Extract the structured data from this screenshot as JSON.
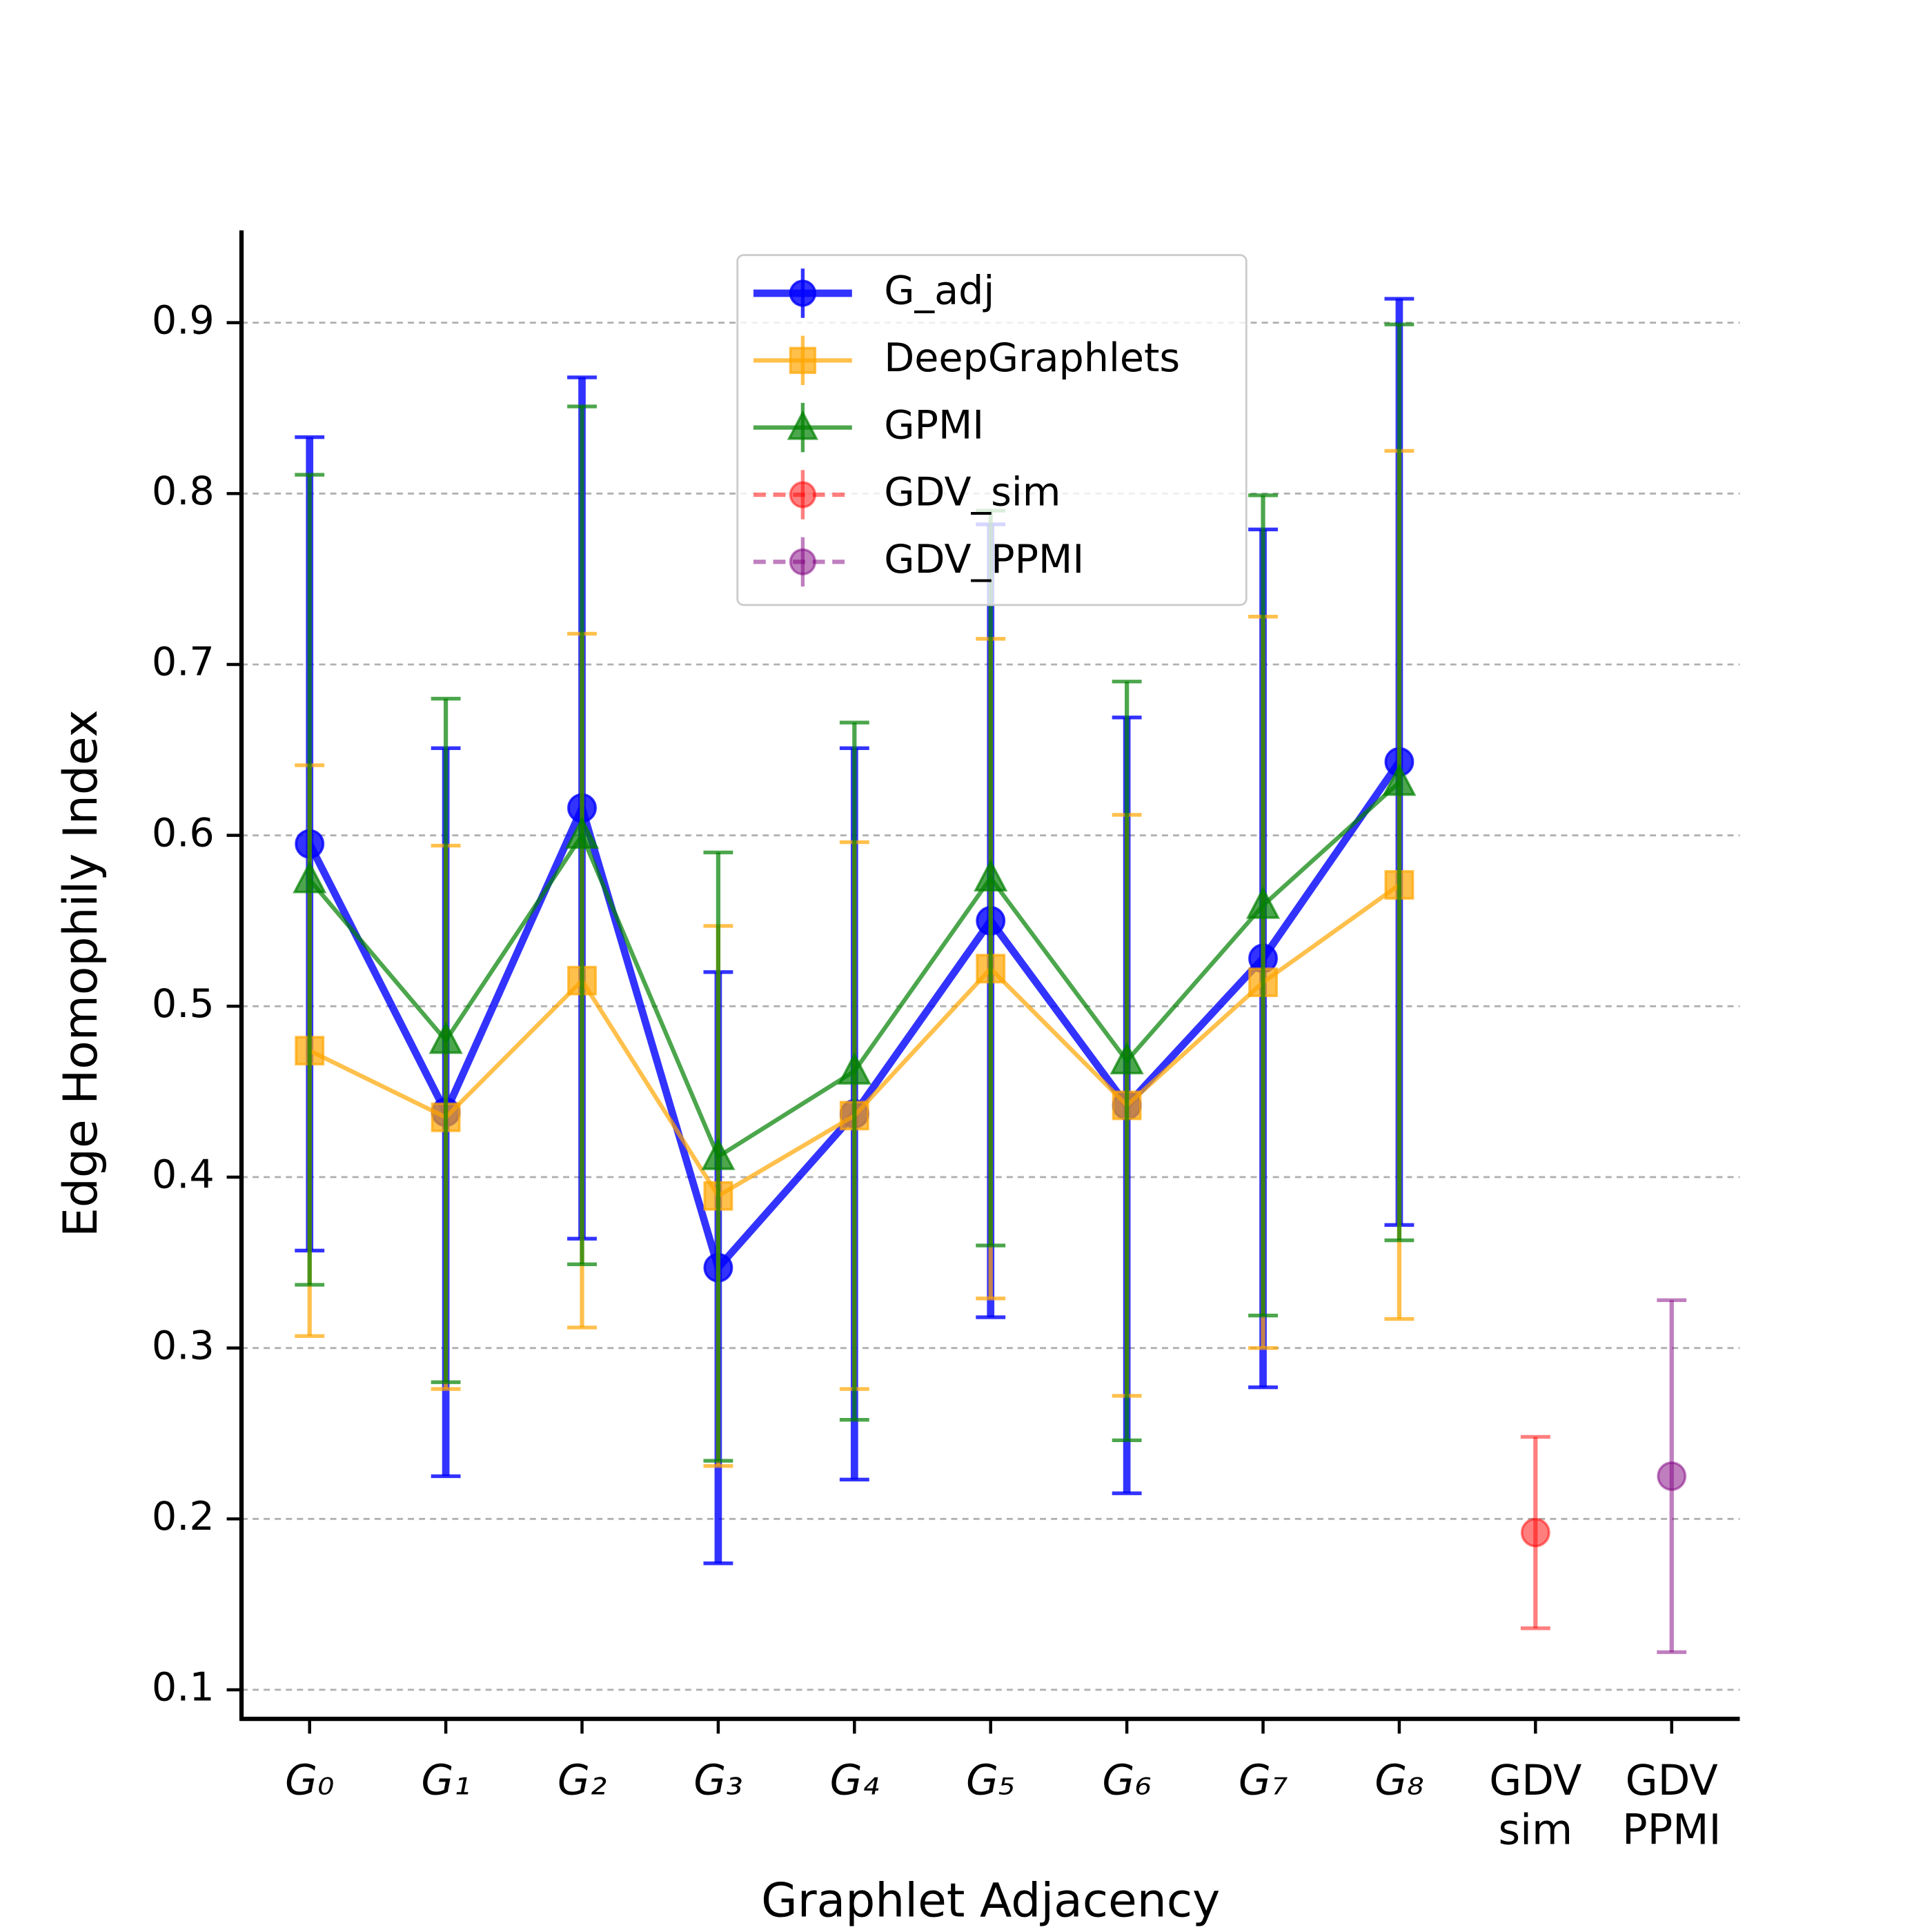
{
  "chart_data": {
    "type": "errorbar",
    "xlabel": "Graphlet Adjacency",
    "ylabel": "Edge Homophily Index",
    "categories": [
      "G₀",
      "G₁",
      "G₂",
      "G₃",
      "G₄",
      "G₅",
      "G₆",
      "G₇",
      "G₈",
      "GDV sim",
      "GDV PPMI"
    ],
    "ylim": [
      0.083,
      0.954
    ],
    "yticks": [
      0.1,
      0.2,
      0.3,
      0.4,
      0.5,
      0.6,
      0.7,
      0.8,
      0.9
    ],
    "grid": true,
    "legend": "upper center",
    "series": [
      {
        "name": "G_adj",
        "color": "#0000ff",
        "marker": "circle",
        "linestyle": "solid",
        "values": [
          0.595,
          0.438,
          0.616,
          0.347,
          0.437,
          0.55,
          0.442,
          0.528,
          0.643,
          null,
          null
        ],
        "errors": [
          0.238,
          0.213,
          0.252,
          0.173,
          0.214,
          0.232,
          0.227,
          0.251,
          0.271,
          null,
          null
        ]
      },
      {
        "name": "DeepGraphlets",
        "color": "#ffa500",
        "marker": "square",
        "linestyle": "solid",
        "values": [
          0.474,
          0.435,
          0.515,
          0.389,
          0.436,
          0.522,
          0.442,
          0.514,
          0.571,
          null,
          null
        ],
        "errors": [
          0.167,
          0.159,
          0.203,
          0.158,
          0.16,
          0.193,
          0.17,
          0.214,
          0.254,
          null,
          null
        ]
      },
      {
        "name": "GPMI",
        "color": "#008000",
        "marker": "triangle",
        "linestyle": "solid",
        "values": [
          0.574,
          0.48,
          0.6,
          0.412,
          0.462,
          0.575,
          0.468,
          0.559,
          0.631,
          null,
          null
        ],
        "errors": [
          0.237,
          0.2,
          0.251,
          0.178,
          0.204,
          0.215,
          0.222,
          0.24,
          0.268,
          null,
          null
        ]
      },
      {
        "name": "GDV_sim",
        "color": "#ff0000",
        "marker": "circle",
        "linestyle": "dashed",
        "values": [
          null,
          null,
          null,
          null,
          null,
          null,
          null,
          null,
          null,
          0.192,
          null
        ],
        "errors": [
          null,
          null,
          null,
          null,
          null,
          null,
          null,
          null,
          null,
          0.056,
          null
        ]
      },
      {
        "name": "GDV_PPMI",
        "color": "#800080",
        "marker": "circle",
        "linestyle": "dashed",
        "values": [
          null,
          null,
          null,
          null,
          null,
          null,
          null,
          null,
          null,
          null,
          0.225
        ],
        "errors": [
          null,
          null,
          null,
          null,
          null,
          null,
          null,
          null,
          null,
          null,
          0.103
        ]
      }
    ]
  }
}
